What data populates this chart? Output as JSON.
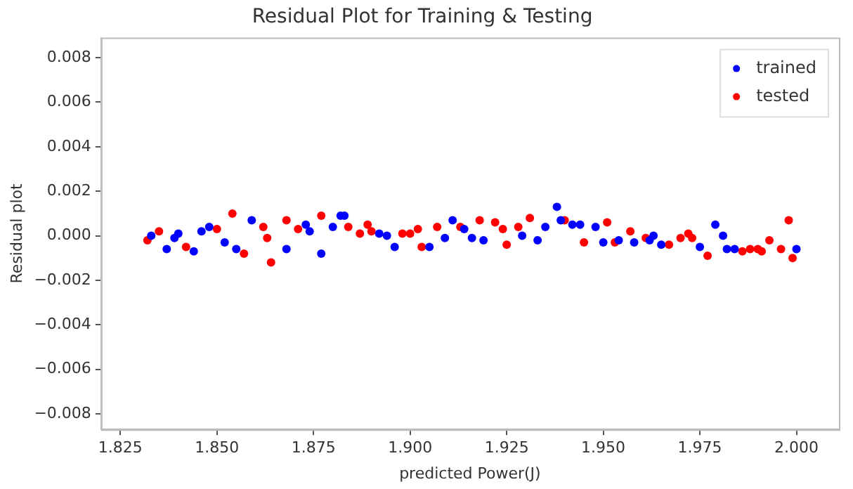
{
  "chart_data": {
    "type": "scatter",
    "title": "Residual Plot for Training & Testing",
    "xlabel": "predicted Power(J)",
    "ylabel": "Residual plot",
    "xlim": [
      1.82,
      2.011
    ],
    "ylim": [
      -0.0087,
      0.0089
    ],
    "xticks": [
      1.825,
      {
        "value": 1.85,
        "label": "1.850"
      },
      1.875,
      {
        "value": 1.9,
        "label": "1.900"
      },
      1.925,
      {
        "value": 1.95,
        "label": "1.950"
      },
      1.975,
      {
        "value": 2,
        "label": "2.000"
      }
    ],
    "yticks": [
      {
        "value": -0.008,
        "label": "−0.008"
      },
      {
        "value": -0.006,
        "label": "−0.006"
      },
      {
        "value": -0.004,
        "label": "−0.004"
      },
      {
        "value": -0.002,
        "label": "−0.002"
      },
      {
        "value": 0,
        "label": "0.000"
      },
      {
        "value": 0.002,
        "label": "0.002"
      },
      {
        "value": 0.004,
        "label": "0.004"
      },
      {
        "value": 0.006,
        "label": "0.006"
      },
      {
        "value": 0.008,
        "label": "0.008"
      }
    ],
    "grid": false,
    "legend": "top right",
    "marker": "circle",
    "series": [
      {
        "name": "trained",
        "color": "#0000ff",
        "x": [
          1.833,
          1.837,
          1.839,
          1.84,
          1.844,
          1.846,
          1.848,
          1.852,
          1.855,
          1.859,
          1.868,
          1.873,
          1.874,
          1.877,
          1.88,
          1.882,
          1.883,
          1.892,
          1.894,
          1.896,
          1.905,
          1.909,
          1.911,
          1.914,
          1.916,
          1.919,
          1.929,
          1.933,
          1.935,
          1.938,
          1.939,
          1.942,
          1.944,
          1.948,
          1.95,
          1.954,
          1.958,
          1.962,
          1.963,
          1.965,
          1.975,
          1.979,
          1.981,
          1.982,
          1.984,
          2.0
        ],
        "values": [
          0.0,
          -0.0006,
          -0.0001,
          0.0001,
          -0.0007,
          0.0002,
          0.0004,
          -0.0003,
          -0.0006,
          0.0007,
          -0.0006,
          0.0005,
          0.0002,
          -0.0008,
          0.0004,
          0.0009,
          0.0009,
          0.0001,
          0.0,
          -0.0005,
          -0.0005,
          -0.0001,
          0.0007,
          0.0003,
          -0.0001,
          -0.0002,
          0.0,
          -0.0002,
          0.0004,
          0.0013,
          0.0007,
          0.0005,
          0.0005,
          0.0004,
          -0.0003,
          -0.0002,
          -0.0003,
          -0.0002,
          0.0,
          -0.0004,
          -0.0005,
          0.0005,
          0.0,
          -0.0006,
          -0.0006,
          -0.0006
        ]
      },
      {
        "name": "tested",
        "color": "#ff0000",
        "x": [
          1.832,
          1.833,
          1.835,
          1.842,
          1.85,
          1.854,
          1.857,
          1.862,
          1.863,
          1.864,
          1.868,
          1.871,
          1.877,
          1.884,
          1.887,
          1.889,
          1.89,
          1.898,
          1.9,
          1.902,
          1.903,
          1.907,
          1.913,
          1.918,
          1.922,
          1.924,
          1.925,
          1.928,
          1.931,
          1.94,
          1.945,
          1.951,
          1.953,
          1.957,
          1.961,
          1.967,
          1.97,
          1.972,
          1.973,
          1.977,
          1.986,
          1.988,
          1.99,
          1.991,
          1.993,
          1.996,
          1.998,
          1.999
        ],
        "values": [
          -0.0002,
          null,
          0.0002,
          -0.0005,
          0.0003,
          0.001,
          -0.0008,
          0.0004,
          -0.0001,
          -0.0012,
          0.0007,
          0.0003,
          0.0009,
          0.0004,
          0.0001,
          0.0005,
          0.0002,
          0.0001,
          0.0001,
          0.0003,
          -0.0005,
          0.0004,
          0.0004,
          0.0007,
          0.0006,
          0.0003,
          -0.0004,
          0.0004,
          0.0008,
          0.0007,
          -0.0003,
          0.0006,
          -0.0003,
          0.0002,
          -0.0001,
          -0.0004,
          -0.0001,
          0.0001,
          -0.0001,
          -0.0009,
          -0.0007,
          -0.0006,
          -0.0006,
          -0.0007,
          -0.0002,
          -0.0006,
          0.0007,
          -0.001
        ]
      }
    ]
  }
}
